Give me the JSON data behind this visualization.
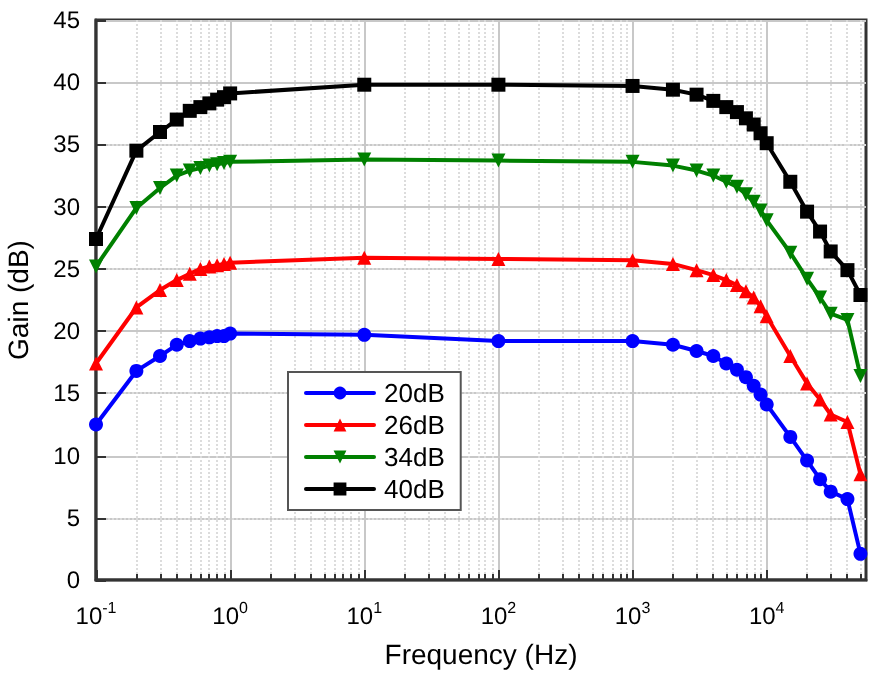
{
  "chart_data": {
    "type": "line",
    "xlabel": "Frequency (Hz)",
    "ylabel": "Gain (dB)",
    "log": "x",
    "x": [
      0.1,
      0.2,
      0.3,
      0.4,
      0.5,
      0.6,
      0.7,
      0.8,
      0.9,
      1,
      10,
      100,
      1000,
      2000,
      3000,
      4000,
      5000,
      6000,
      7000,
      8000,
      9000,
      10000,
      15000,
      20000,
      25000,
      30000,
      40000,
      50000
    ],
    "series": [
      {
        "name": "20dB",
        "color": "#0000ff",
        "marker": "circle",
        "values": [
          12.5,
          16.8,
          18.0,
          18.9,
          19.2,
          19.4,
          19.5,
          19.6,
          19.6,
          19.8,
          19.7,
          19.2,
          19.2,
          18.9,
          18.4,
          18.0,
          17.4,
          16.9,
          16.3,
          15.6,
          14.9,
          14.1,
          11.5,
          9.6,
          8.1,
          7.1,
          6.5,
          2.1
        ]
      },
      {
        "name": "26dB",
        "color": "#ff0000",
        "marker": "triangle",
        "values": [
          17.4,
          21.9,
          23.3,
          24.1,
          24.6,
          25.0,
          25.2,
          25.3,
          25.4,
          25.5,
          25.9,
          25.8,
          25.7,
          25.4,
          24.9,
          24.5,
          24.1,
          23.7,
          23.2,
          22.7,
          22.0,
          21.2,
          18.0,
          15.8,
          14.5,
          13.3,
          12.7,
          8.5
        ]
      },
      {
        "name": "34dB",
        "color": "#008000",
        "marker": "triangle-down",
        "values": [
          25.2,
          29.9,
          31.5,
          32.5,
          32.9,
          33.1,
          33.3,
          33.4,
          33.5,
          33.6,
          33.8,
          33.7,
          33.6,
          33.3,
          32.9,
          32.5,
          32.0,
          31.6,
          31.0,
          30.4,
          29.7,
          28.9,
          26.3,
          24.2,
          22.7,
          21.4,
          20.9,
          16.4
        ]
      },
      {
        "name": "40dB",
        "color": "#000000",
        "marker": "square",
        "values": [
          27.4,
          34.5,
          36.0,
          37.0,
          37.7,
          38.0,
          38.3,
          38.6,
          38.8,
          39.1,
          39.8,
          39.8,
          39.7,
          39.4,
          39.0,
          38.5,
          38.0,
          37.6,
          37.1,
          36.6,
          35.9,
          35.1,
          32.0,
          29.6,
          28.0,
          26.4,
          24.9,
          22.9
        ]
      }
    ],
    "xlim": [
      0.1,
      55000
    ],
    "xticks": [
      {
        "value": 0.1,
        "label": "10$^{-1}$"
      },
      {
        "value": 1,
        "label": "10$^{0}$"
      },
      {
        "value": 10,
        "label": "10$^{1}$"
      },
      {
        "value": 100,
        "label": "10$^{2}$"
      },
      {
        "value": 1000,
        "label": "10$^{3}$"
      },
      {
        "value": 10000,
        "label": "10$^{4}$"
      }
    ],
    "ylim": [
      0,
      45
    ],
    "yticks": [
      0,
      5,
      10,
      15,
      20,
      25,
      30,
      35,
      40,
      45
    ],
    "grid": true,
    "legend": "bottom",
    "line_style": "solid"
  }
}
